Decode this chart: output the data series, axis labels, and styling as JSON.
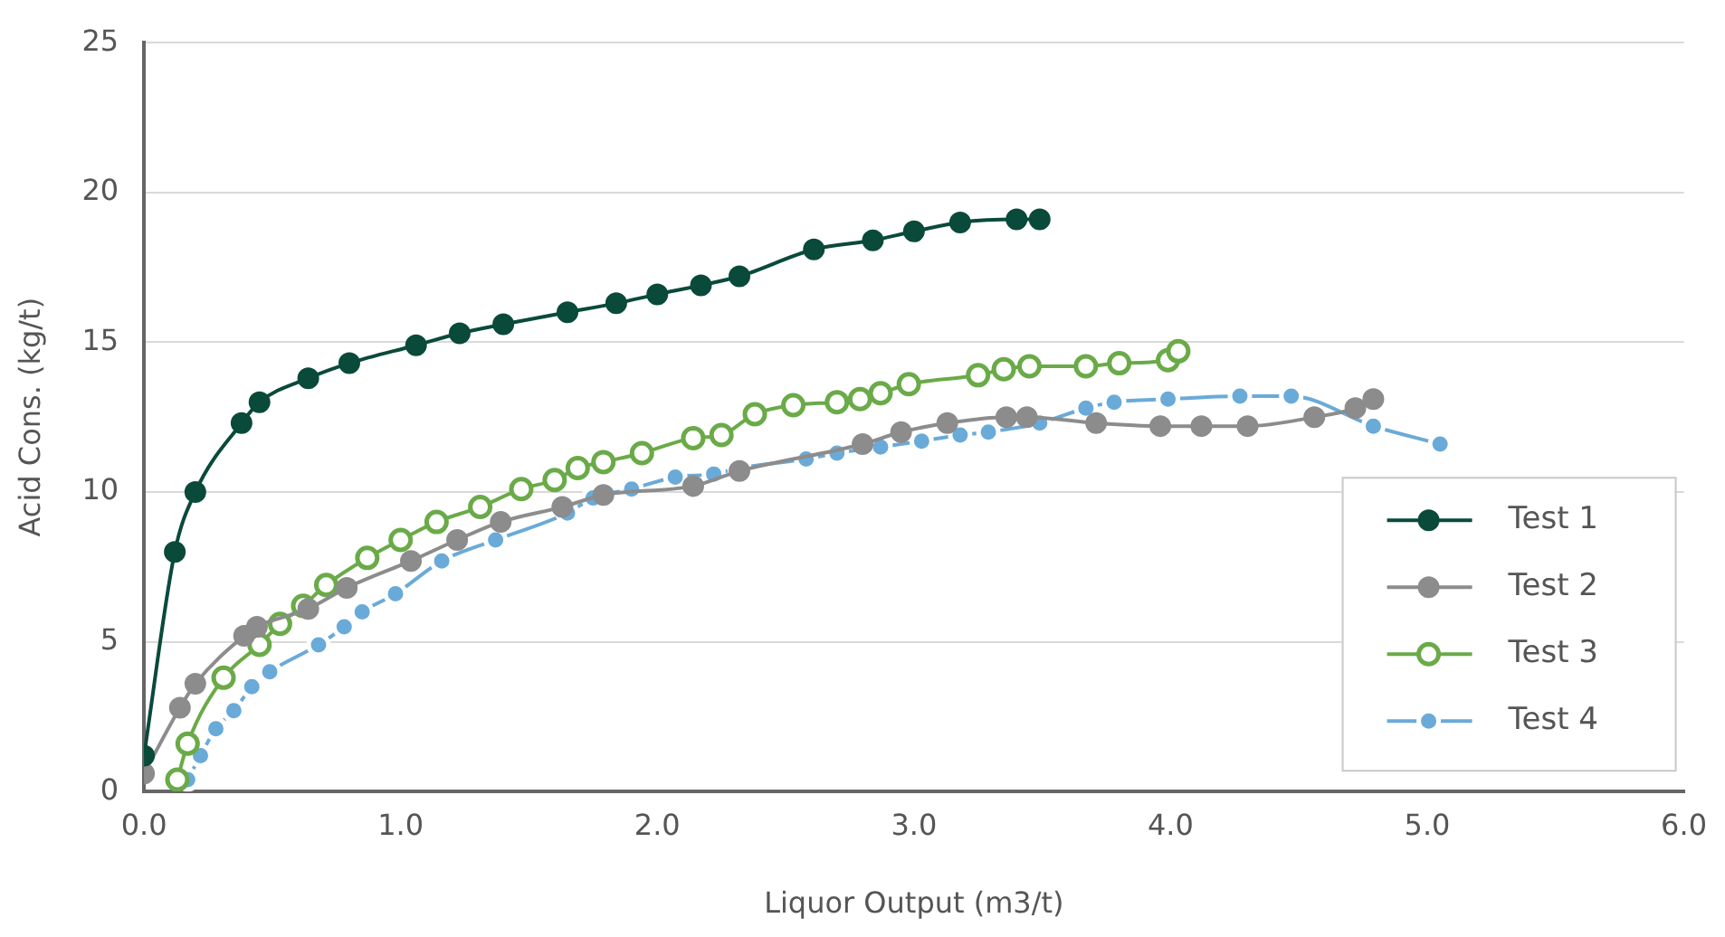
{
  "chart_data": {
    "type": "line",
    "xlabel": "Liquor Output (m3/t)",
    "ylabel": "Acid Cons. (kg/t)",
    "xlim": [
      0,
      6
    ],
    "xticks": [
      {
        "value": 0,
        "label": "0.0"
      },
      {
        "value": 1,
        "label": "1.0"
      },
      {
        "value": 2,
        "label": "2.0"
      },
      {
        "value": 3,
        "label": "3.0"
      },
      {
        "value": 4,
        "label": "4.0"
      },
      {
        "value": 5,
        "label": "5.0"
      },
      {
        "value": 6,
        "label": "6.0"
      }
    ],
    "ylim": [
      0,
      25
    ],
    "yticks": [
      0,
      5,
      10,
      15,
      20,
      25
    ],
    "grid": "y",
    "legend": "bottom right",
    "marker": "circle",
    "line_style": "solid",
    "series": [
      {
        "name": "Test 1",
        "color": "#0a4a3a",
        "x": [
          0.0,
          0.12,
          0.2,
          0.38,
          0.45,
          0.64,
          0.8,
          1.06,
          1.23,
          1.4,
          1.65,
          1.84,
          2.0,
          2.17,
          2.32,
          2.61,
          2.84,
          3.0,
          3.18,
          3.4,
          3.49
        ],
        "values": [
          1.2,
          8.0,
          10.0,
          12.3,
          13.0,
          13.8,
          14.3,
          14.9,
          15.3,
          15.6,
          16.0,
          16.3,
          16.6,
          16.9,
          17.2,
          18.1,
          18.4,
          18.7,
          19.0,
          19.1,
          19.1
        ]
      },
      {
        "name": "Test 2",
        "color": "#8c8c8c",
        "x": [
          0.0,
          0.14,
          0.2,
          0.39,
          0.44,
          0.64,
          0.79,
          1.04,
          1.22,
          1.39,
          1.63,
          1.79,
          2.14,
          2.32,
          2.8,
          2.95,
          3.13,
          3.36,
          3.44,
          3.71,
          3.96,
          4.12,
          4.3,
          4.56,
          4.72,
          4.79
        ],
        "values": [
          0.6,
          2.8,
          3.6,
          5.2,
          5.5,
          6.1,
          6.8,
          7.7,
          8.4,
          9.0,
          9.5,
          9.9,
          10.2,
          10.7,
          11.6,
          12.0,
          12.3,
          12.5,
          12.5,
          12.3,
          12.2,
          12.2,
          12.2,
          12.5,
          12.8,
          13.1
        ]
      },
      {
        "name": "Test 3",
        "color": "#6aaa48",
        "x": [
          0.13,
          0.17,
          0.31,
          0.45,
          0.53,
          0.62,
          0.71,
          0.87,
          1.0,
          1.14,
          1.31,
          1.47,
          1.6,
          1.69,
          1.79,
          1.94,
          2.14,
          2.25,
          2.38,
          2.53,
          2.7,
          2.79,
          2.87,
          2.98,
          3.25,
          3.35,
          3.45,
          3.67,
          3.8,
          3.99,
          4.03
        ],
        "values": [
          0.4,
          1.6,
          3.8,
          4.9,
          5.6,
          6.2,
          6.9,
          7.8,
          8.4,
          9.0,
          9.5,
          10.1,
          10.4,
          10.8,
          11.0,
          11.3,
          11.8,
          11.9,
          12.6,
          12.9,
          13.0,
          13.1,
          13.3,
          13.6,
          13.9,
          14.1,
          14.2,
          14.2,
          14.3,
          14.4,
          14.7
        ]
      },
      {
        "name": "Test 4",
        "color": "#6aaad8",
        "x": [
          0.17,
          0.22,
          0.28,
          0.35,
          0.42,
          0.49,
          0.68,
          0.78,
          0.85,
          0.98,
          1.16,
          1.37,
          1.65,
          1.75,
          1.9,
          2.07,
          2.22,
          2.32,
          2.58,
          2.7,
          2.87,
          3.03,
          3.18,
          3.29,
          3.49,
          3.67,
          3.78,
          3.99,
          4.27,
          4.47,
          4.79,
          5.05
        ],
        "values": [
          0.4,
          1.2,
          2.1,
          2.7,
          3.5,
          4.0,
          4.9,
          5.5,
          6.0,
          6.6,
          7.7,
          8.4,
          9.3,
          9.8,
          10.1,
          10.5,
          10.6,
          10.8,
          11.1,
          11.3,
          11.5,
          11.7,
          11.9,
          12.0,
          12.3,
          12.8,
          13.0,
          13.1,
          13.2,
          13.2,
          12.2,
          11.6
        ]
      }
    ]
  }
}
